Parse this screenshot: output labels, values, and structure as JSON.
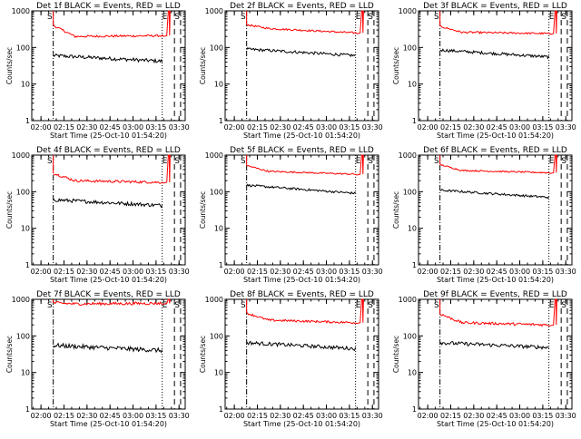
{
  "colors": {
    "events": "#000000",
    "lld": "#ff0000",
    "axis": "#000000",
    "background": "#ffffff"
  },
  "chart_data": [
    {
      "type": "line",
      "title": "Det 1f BLACK = Events, RED = LLD",
      "xlabel": "Start Time (25-Oct-10 01:54:20)",
      "ylabel": "Counts/sec",
      "yscale": "log",
      "ylim": [
        1,
        1000
      ],
      "xlim": [
        "01:54",
        "03:34"
      ],
      "xticks": [
        "02:00",
        "02:15",
        "02:30",
        "02:45",
        "03:00",
        "03:15",
        "03:30"
      ],
      "yticks": [
        "1",
        "10",
        "100",
        "1000"
      ],
      "markers": [
        "S",
        "E",
        "S"
      ],
      "series": [
        {
          "color": "#000000",
          "start": "02:08",
          "end": "03:19",
          "start_value": 60,
          "end_value": 42,
          "noise": 0.05
        },
        {
          "color": "#ff0000",
          "start": "02:08",
          "end": "03:19",
          "start_value": 400,
          "mid_value": 200,
          "end_value": 210,
          "noise": 0.03,
          "spike": {
            "time": "03:23",
            "peak": 1000
          }
        }
      ]
    },
    {
      "type": "line",
      "title": "Det 2f BLACK = Events, RED = LLD",
      "xlabel": "Start Time (25-Oct-10 01:54:20)",
      "ylabel": "Counts/sec",
      "yscale": "log",
      "ylim": [
        1,
        1000
      ],
      "xlim": [
        "01:54",
        "03:34"
      ],
      "xticks": [
        "02:00",
        "02:15",
        "02:30",
        "02:45",
        "03:00",
        "03:15",
        "03:30"
      ],
      "yticks": [
        "1",
        "10",
        "100",
        "1000"
      ],
      "markers": [
        "S",
        "E",
        "S"
      ],
      "series": [
        {
          "color": "#000000",
          "start": "02:08",
          "end": "03:19",
          "start_value": 90,
          "end_value": 60,
          "noise": 0.04
        },
        {
          "color": "#ff0000",
          "start": "02:08",
          "end": "03:19",
          "start_value": 420,
          "mid_value": 330,
          "end_value": 250,
          "noise": 0.025,
          "spike": {
            "time": "03:23",
            "peak": 1000
          }
        }
      ]
    },
    {
      "type": "line",
      "title": "Det 3f BLACK = Events, RED = LLD",
      "xlabel": "Start Time (25-Oct-10 01:54:20)",
      "ylabel": "Counts/sec",
      "yscale": "log",
      "ylim": [
        1,
        1000
      ],
      "xlim": [
        "01:54",
        "03:34"
      ],
      "xticks": [
        "02:00",
        "02:15",
        "02:30",
        "02:45",
        "03:00",
        "03:15",
        "03:30"
      ],
      "yticks": [
        "1",
        "10",
        "100",
        "1000"
      ],
      "markers": [
        "S",
        "E",
        "S"
      ],
      "series": [
        {
          "color": "#000000",
          "start": "02:08",
          "end": "03:19",
          "start_value": 85,
          "end_value": 55,
          "noise": 0.04
        },
        {
          "color": "#ff0000",
          "start": "02:08",
          "end": "03:19",
          "start_value": 380,
          "mid_value": 260,
          "end_value": 240,
          "noise": 0.025,
          "spike": {
            "time": "03:23",
            "peak": 1000
          }
        }
      ]
    },
    {
      "type": "line",
      "title": "Det 4f BLACK = Events, RED = LLD",
      "xlabel": "Start Time (25-Oct-10 01:54:20)",
      "ylabel": "Counts/sec",
      "yscale": "log",
      "ylim": [
        1,
        1000
      ],
      "xlim": [
        "01:54",
        "03:34"
      ],
      "xticks": [
        "02:00",
        "02:15",
        "02:30",
        "02:45",
        "03:00",
        "03:15",
        "03:30"
      ],
      "yticks": [
        "1",
        "10",
        "100",
        "1000"
      ],
      "markers": [
        "S",
        "E",
        "S"
      ],
      "series": [
        {
          "color": "#000000",
          "start": "02:08",
          "end": "03:19",
          "start_value": 60,
          "end_value": 42,
          "noise": 0.05
        },
        {
          "color": "#ff0000",
          "start": "02:08",
          "end": "03:19",
          "start_value": 320,
          "mid_value": 200,
          "end_value": 180,
          "noise": 0.035,
          "spike": {
            "time": "03:23",
            "peak": 1000
          }
        }
      ]
    },
    {
      "type": "line",
      "title": "Det 5f BLACK = Events, RED = LLD",
      "xlabel": "Start Time (25-Oct-10 01:54:20)",
      "ylabel": "Counts/sec",
      "yscale": "log",
      "ylim": [
        1,
        1000
      ],
      "xlim": [
        "01:54",
        "03:34"
      ],
      "xticks": [
        "02:00",
        "02:15",
        "02:30",
        "02:45",
        "03:00",
        "03:15",
        "03:30"
      ],
      "yticks": [
        "1",
        "10",
        "100",
        "1000"
      ],
      "markers": [
        "S",
        "E",
        "S"
      ],
      "series": [
        {
          "color": "#000000",
          "start": "02:08",
          "end": "03:19",
          "start_value": 150,
          "end_value": 90,
          "noise": 0.03
        },
        {
          "color": "#ff0000",
          "start": "02:08",
          "end": "03:19",
          "start_value": 520,
          "mid_value": 360,
          "end_value": 300,
          "noise": 0.02,
          "spike": {
            "time": "03:23",
            "peak": 1000
          }
        }
      ]
    },
    {
      "type": "line",
      "title": "Det 6f BLACK = Events, RED = LLD",
      "xlabel": "Start Time (25-Oct-10 01:54:20)",
      "ylabel": "Counts/sec",
      "yscale": "log",
      "ylim": [
        1,
        1000
      ],
      "xlim": [
        "01:54",
        "03:34"
      ],
      "xticks": [
        "02:00",
        "02:15",
        "02:30",
        "02:45",
        "03:00",
        "03:15",
        "03:30"
      ],
      "yticks": [
        "1",
        "10",
        "100",
        "1000"
      ],
      "markers": [
        "S",
        "E",
        "S"
      ],
      "series": [
        {
          "color": "#000000",
          "start": "02:08",
          "end": "03:19",
          "start_value": 110,
          "end_value": 70,
          "noise": 0.03
        },
        {
          "color": "#ff0000",
          "start": "02:08",
          "end": "03:19",
          "start_value": 550,
          "mid_value": 380,
          "end_value": 330,
          "noise": 0.02,
          "spike": {
            "time": "03:23",
            "peak": 1000
          }
        }
      ]
    },
    {
      "type": "line",
      "title": "Det 7f BLACK = Events, RED = LLD",
      "xlabel": "Start Time (25-Oct-10 01:54:20)",
      "ylabel": "Counts/sec",
      "yscale": "log",
      "ylim": [
        1,
        1000
      ],
      "xlim": [
        "01:54",
        "03:34"
      ],
      "xticks": [
        "02:00",
        "02:15",
        "02:30",
        "02:45",
        "03:00",
        "03:15",
        "03:30"
      ],
      "yticks": [
        "1",
        "10",
        "100",
        "1000"
      ],
      "markers": [
        "S",
        "E",
        "S"
      ],
      "series": [
        {
          "color": "#000000",
          "start": "02:08",
          "end": "03:19",
          "start_value": 55,
          "end_value": 40,
          "noise": 0.06
        },
        {
          "color": "#ff0000",
          "start": "02:08",
          "end": "03:19",
          "start_value": 800,
          "mid_value": 750,
          "end_value": 780,
          "noise": 0.04,
          "spike": {
            "time": "03:23",
            "peak": 1000
          }
        }
      ]
    },
    {
      "type": "line",
      "title": "Det 8f BLACK = Events, RED = LLD",
      "xlabel": "Start Time (25-Oct-10 01:54:20)",
      "ylabel": "Counts/sec",
      "yscale": "log",
      "ylim": [
        1,
        1000
      ],
      "xlim": [
        "01:54",
        "03:34"
      ],
      "xticks": [
        "02:00",
        "02:15",
        "02:30",
        "02:45",
        "03:00",
        "03:15",
        "03:30"
      ],
      "yticks": [
        "1",
        "10",
        "100",
        "1000"
      ],
      "markers": [
        "S",
        "E",
        "S"
      ],
      "series": [
        {
          "color": "#000000",
          "start": "02:08",
          "end": "03:19",
          "start_value": 65,
          "end_value": 45,
          "noise": 0.05
        },
        {
          "color": "#ff0000",
          "start": "02:08",
          "end": "03:19",
          "start_value": 420,
          "mid_value": 270,
          "end_value": 230,
          "noise": 0.03,
          "spike": {
            "time": "03:23",
            "peak": 1000
          }
        }
      ]
    },
    {
      "type": "line",
      "title": "Det 9f BLACK = Events, RED = LLD",
      "xlabel": "Start Time (25-Oct-10 01:54:20)",
      "ylabel": "Counts/sec",
      "yscale": "log",
      "ylim": [
        1,
        1000
      ],
      "xlim": [
        "01:54",
        "03:34"
      ],
      "xticks": [
        "02:00",
        "02:15",
        "02:30",
        "02:45",
        "03:00",
        "03:15",
        "03:30"
      ],
      "yticks": [
        "1",
        "10",
        "100",
        "1000"
      ],
      "markers": [
        "S",
        "E",
        "S"
      ],
      "series": [
        {
          "color": "#000000",
          "start": "02:08",
          "end": "03:19",
          "start_value": 65,
          "end_value": 48,
          "noise": 0.05
        },
        {
          "color": "#ff0000",
          "start": "02:08",
          "end": "03:19",
          "start_value": 400,
          "mid_value": 230,
          "end_value": 200,
          "noise": 0.035,
          "spike": {
            "time": "03:23",
            "peak": 1000
          }
        }
      ]
    }
  ]
}
